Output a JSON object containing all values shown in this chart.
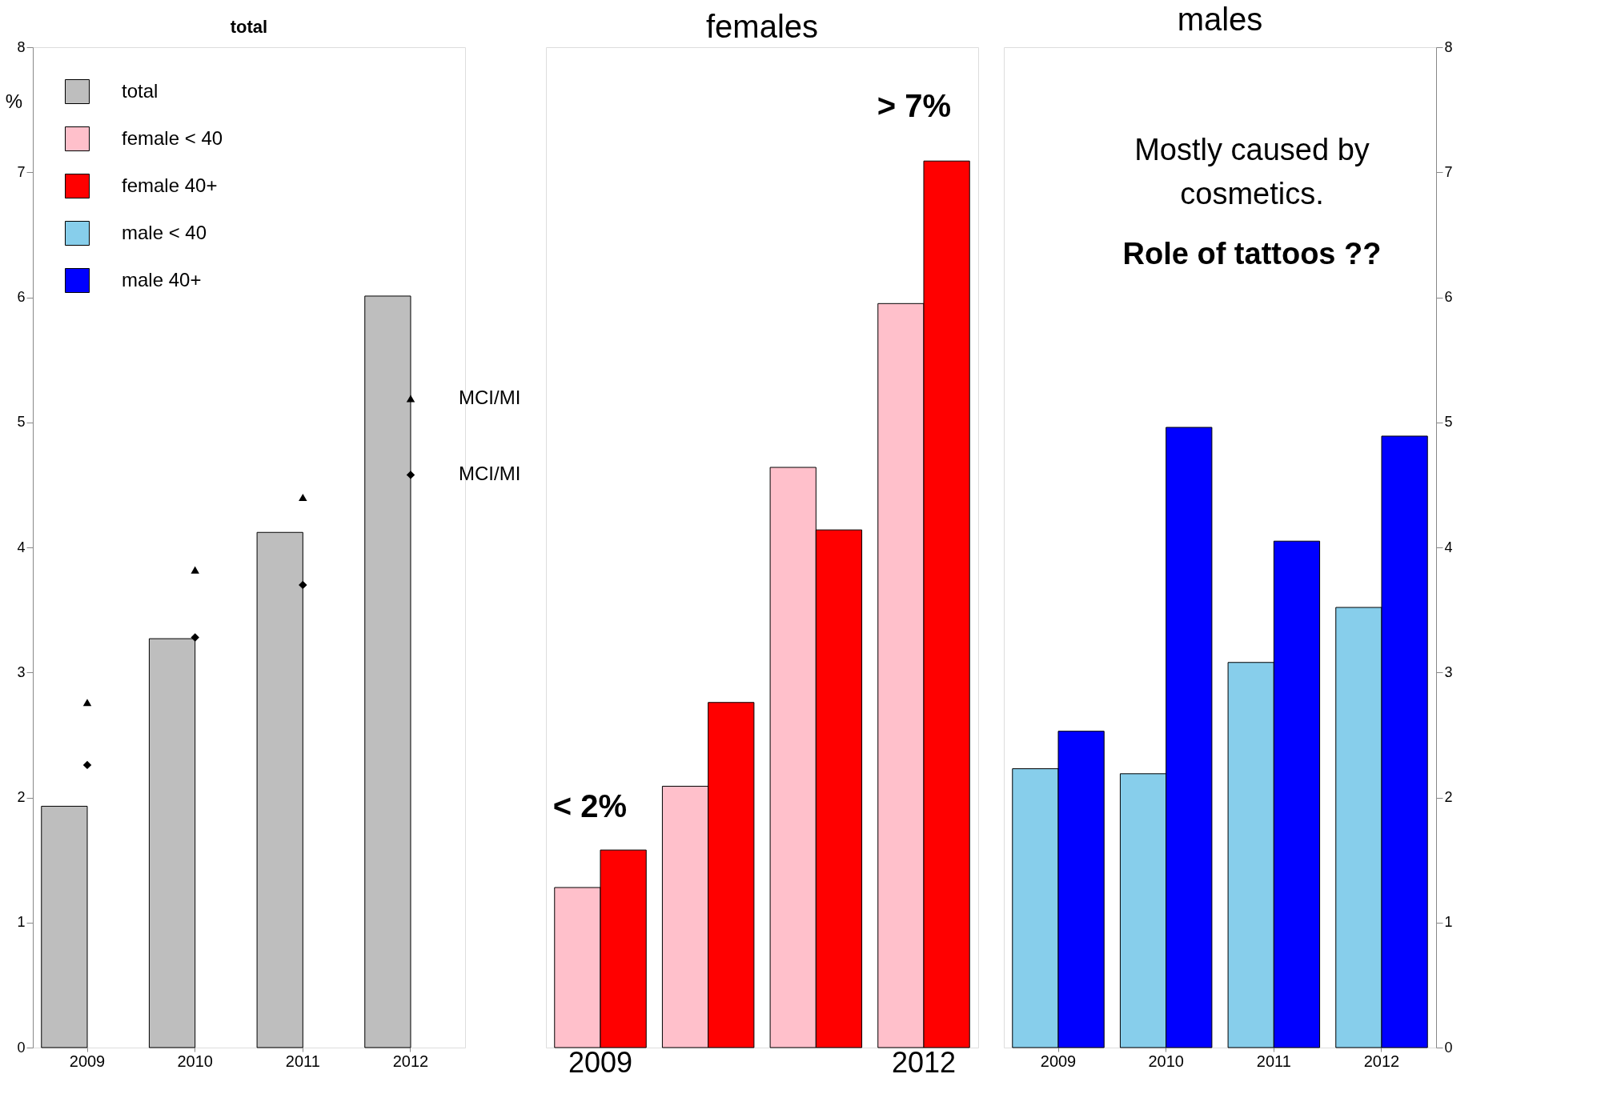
{
  "chart_data": [
    {
      "type": "bar",
      "title": "total",
      "ylabel": "%",
      "categories": [
        "2009",
        "2010",
        "2011",
        "2012"
      ],
      "ylim": [
        0,
        8
      ],
      "yticks": [
        0,
        1,
        2,
        3,
        4,
        5,
        6,
        7,
        8
      ],
      "legend": "top left",
      "series": [
        {
          "name": "total",
          "color": "#bebebe",
          "values": [
            1.93,
            3.27,
            4.12,
            6.01
          ]
        },
        {
          "type": "scatter",
          "name": "MCI/MI",
          "marker": "triangle",
          "color": "#000000",
          "values": [
            2.76,
            3.82,
            4.4,
            5.19
          ]
        },
        {
          "type": "scatter",
          "name": "MCI/MI",
          "marker": "diamond",
          "color": "#000000",
          "values": [
            2.26,
            3.28,
            3.7,
            4.58
          ]
        }
      ]
    },
    {
      "type": "bar",
      "title": "females",
      "categories": [
        "2009",
        null,
        null,
        "2012"
      ],
      "ylim": [
        0,
        8
      ],
      "tick_labels": "x",
      "legend": "left",
      "series": [
        {
          "name": "female < 40",
          "color": "#ffc0cb",
          "values": [
            1.28,
            2.09,
            4.64,
            5.95
          ]
        },
        {
          "name": "female 40+",
          "color": "#ff0000",
          "values": [
            1.58,
            2.76,
            4.14,
            7.09
          ]
        }
      ],
      "annotations": [
        "< 2%",
        "> 7%"
      ]
    },
    {
      "type": "bar",
      "title": "males",
      "categories": [
        "2009",
        "2010",
        "2011",
        "2012"
      ],
      "ylim": [
        0,
        8
      ],
      "yticks": [
        0,
        1,
        2,
        3,
        4,
        5,
        6,
        7,
        8
      ],
      "legend": "left",
      "series": [
        {
          "name": "male < 40",
          "color": "#87ceeb",
          "values": [
            2.23,
            2.19,
            3.08,
            3.52
          ]
        },
        {
          "name": "male 40+",
          "color": "#0000ff",
          "values": [
            2.53,
            4.96,
            4.05,
            4.89
          ]
        }
      ],
      "annotations": [
        "Mostly caused by",
        "cosmetics.",
        "Role of tattoos ??"
      ]
    }
  ]
}
